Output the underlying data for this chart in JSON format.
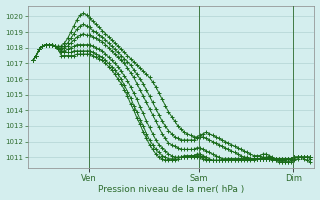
{
  "background_color": "#d4eeee",
  "grid_color": "#aacccc",
  "line_color": "#1a6b1a",
  "marker": "+",
  "xlabel_text": "Pression niveau de la mer( hPa )",
  "ylim": [
    1010.3,
    1020.7
  ],
  "xlim": [
    -5,
    268
  ],
  "yticks": [
    1011,
    1012,
    1013,
    1014,
    1015,
    1016,
    1017,
    1018,
    1019,
    1020
  ],
  "xtick_positions": [
    53,
    158,
    248
  ],
  "xtick_labels": [
    "Ven",
    "Sam",
    "Dim"
  ],
  "vlines": [
    53,
    158,
    248
  ],
  "lines": {
    "line1": {
      "x": [
        0,
        3,
        6,
        9,
        12,
        15,
        18,
        21,
        24,
        27,
        30,
        33,
        36,
        39,
        42,
        45,
        48,
        51,
        54,
        57,
        60,
        63,
        66,
        69,
        72,
        75,
        78,
        81,
        84,
        87,
        90,
        93,
        96,
        99,
        102,
        105,
        108,
        111,
        114,
        117,
        120,
        123,
        126,
        129,
        132,
        135,
        138,
        141,
        144,
        147,
        150,
        153,
        156,
        159,
        162,
        165,
        168,
        171,
        174,
        177,
        180,
        183,
        186,
        189,
        192,
        195,
        198,
        201,
        204,
        207,
        210,
        213,
        216,
        219,
        222,
        225,
        228,
        231,
        234,
        237,
        240,
        243,
        246,
        249,
        252,
        255,
        258,
        261,
        264
      ],
      "y": [
        1017.2,
        1017.5,
        1017.9,
        1018.1,
        1018.2,
        1018.2,
        1018.2,
        1018.1,
        1018.1,
        1018.1,
        1018.3,
        1018.6,
        1019.0,
        1019.4,
        1019.8,
        1020.1,
        1020.2,
        1020.1,
        1019.9,
        1019.7,
        1019.5,
        1019.3,
        1019.1,
        1018.9,
        1018.7,
        1018.5,
        1018.3,
        1018.1,
        1017.9,
        1017.7,
        1017.5,
        1017.3,
        1017.1,
        1016.9,
        1016.7,
        1016.5,
        1016.3,
        1016.1,
        1015.8,
        1015.5,
        1015.1,
        1014.7,
        1014.3,
        1013.9,
        1013.6,
        1013.3,
        1013.0,
        1012.8,
        1012.6,
        1012.5,
        1012.4,
        1012.3,
        1012.3,
        1012.4,
        1012.5,
        1012.6,
        1012.5,
        1012.4,
        1012.3,
        1012.2,
        1012.1,
        1012.0,
        1011.9,
        1011.8,
        1011.7,
        1011.6,
        1011.5,
        1011.4,
        1011.3,
        1011.2,
        1011.1,
        1011.1,
        1011.1,
        1011.2,
        1011.2,
        1011.1,
        1011.0,
        1010.9,
        1010.8,
        1010.7,
        1010.7,
        1010.7,
        1010.7,
        1010.8,
        1010.9,
        1011.0,
        1011.0,
        1011.0,
        1011.0
      ]
    },
    "line2": {
      "x": [
        0,
        3,
        6,
        9,
        12,
        15,
        18,
        21,
        24,
        27,
        30,
        33,
        36,
        39,
        42,
        45,
        48,
        51,
        54,
        57,
        60,
        63,
        66,
        69,
        72,
        75,
        78,
        81,
        84,
        87,
        90,
        93,
        96,
        99,
        102,
        105,
        108,
        111,
        114,
        117,
        120,
        123,
        126,
        129,
        132,
        135,
        138,
        141,
        144,
        147,
        150,
        153,
        156,
        159,
        162,
        165,
        168,
        171,
        174,
        177,
        180,
        183,
        186,
        189,
        192,
        195,
        198,
        201,
        204,
        207,
        210,
        213,
        216,
        219,
        222,
        225,
        228,
        231,
        234,
        237,
        240,
        243,
        246,
        249,
        252,
        255,
        258,
        261,
        264
      ],
      "y": [
        1017.2,
        1017.5,
        1017.9,
        1018.1,
        1018.2,
        1018.2,
        1018.2,
        1018.1,
        1018.0,
        1018.0,
        1018.1,
        1018.3,
        1018.6,
        1018.9,
        1019.2,
        1019.4,
        1019.5,
        1019.4,
        1019.3,
        1019.1,
        1019.0,
        1018.8,
        1018.7,
        1018.5,
        1018.3,
        1018.1,
        1017.9,
        1017.7,
        1017.5,
        1017.3,
        1017.1,
        1016.9,
        1016.6,
        1016.3,
        1016.0,
        1015.7,
        1015.3,
        1014.9,
        1014.5,
        1014.1,
        1013.7,
        1013.3,
        1013.0,
        1012.7,
        1012.5,
        1012.3,
        1012.2,
        1012.1,
        1012.1,
        1012.1,
        1012.1,
        1012.1,
        1012.2,
        1012.3,
        1012.3,
        1012.2,
        1012.1,
        1012.0,
        1011.9,
        1011.8,
        1011.7,
        1011.6,
        1011.5,
        1011.4,
        1011.3,
        1011.2,
        1011.1,
        1011.0,
        1011.0,
        1010.9,
        1010.9,
        1010.9,
        1010.9,
        1011.0,
        1011.0,
        1011.0,
        1010.9,
        1010.8,
        1010.7,
        1010.7,
        1010.7,
        1010.7,
        1010.8,
        1010.9,
        1011.0,
        1011.0,
        1010.9,
        1010.8,
        1010.7
      ]
    },
    "line3": {
      "x": [
        0,
        3,
        6,
        9,
        12,
        15,
        18,
        21,
        24,
        27,
        30,
        33,
        36,
        39,
        42,
        45,
        48,
        51,
        54,
        57,
        60,
        63,
        66,
        69,
        72,
        75,
        78,
        81,
        84,
        87,
        90,
        93,
        96,
        99,
        102,
        105,
        108,
        111,
        114,
        117,
        120,
        123,
        126,
        129,
        132,
        135,
        138,
        141,
        144,
        147,
        150,
        153,
        156,
        159,
        162,
        165,
        168,
        171,
        174,
        177,
        180,
        183,
        186,
        189,
        192,
        195,
        198,
        201,
        204,
        207,
        210,
        213,
        216,
        219,
        222,
        225,
        228,
        231,
        234,
        237,
        240,
        243,
        246,
        249,
        252,
        255,
        258,
        261,
        264
      ],
      "y": [
        1017.2,
        1017.5,
        1017.9,
        1018.1,
        1018.2,
        1018.2,
        1018.2,
        1018.1,
        1018.0,
        1017.9,
        1018.0,
        1018.1,
        1018.3,
        1018.5,
        1018.7,
        1018.8,
        1018.9,
        1018.8,
        1018.8,
        1018.7,
        1018.6,
        1018.5,
        1018.4,
        1018.2,
        1018.0,
        1017.8,
        1017.6,
        1017.4,
        1017.2,
        1017.0,
        1016.7,
        1016.4,
        1016.1,
        1015.7,
        1015.3,
        1014.9,
        1014.5,
        1014.1,
        1013.7,
        1013.3,
        1012.9,
        1012.5,
        1012.2,
        1011.9,
        1011.8,
        1011.7,
        1011.6,
        1011.5,
        1011.5,
        1011.5,
        1011.5,
        1011.5,
        1011.6,
        1011.6,
        1011.5,
        1011.4,
        1011.3,
        1011.2,
        1011.1,
        1011.0,
        1010.9,
        1010.9,
        1010.8,
        1010.8,
        1010.8,
        1010.8,
        1010.8,
        1010.8,
        1010.8,
        1010.8,
        1010.8,
        1010.9,
        1010.9,
        1010.9,
        1010.9,
        1010.9,
        1010.8,
        1010.8,
        1010.8,
        1010.8,
        1010.8,
        1010.9,
        1010.9,
        1011.0,
        1011.0,
        1011.0,
        1011.0,
        1011.0,
        1010.9
      ]
    },
    "line4": {
      "x": [
        0,
        3,
        6,
        9,
        12,
        15,
        18,
        21,
        24,
        27,
        30,
        33,
        36,
        39,
        42,
        45,
        48,
        51,
        54,
        57,
        60,
        63,
        66,
        69,
        72,
        75,
        78,
        81,
        84,
        87,
        90,
        93,
        96,
        99,
        102,
        105,
        108,
        111,
        114,
        117,
        120,
        123,
        126,
        129,
        132,
        135,
        138,
        141,
        144,
        147,
        150,
        153,
        156,
        159,
        162,
        165,
        168,
        171,
        174,
        177,
        180,
        183,
        186,
        189,
        192,
        195,
        198,
        201,
        204,
        207,
        210,
        213,
        216,
        219,
        222,
        225,
        228,
        231,
        234,
        237,
        240,
        243,
        246,
        249,
        252,
        255,
        258,
        261,
        264
      ],
      "y": [
        1017.2,
        1017.5,
        1017.9,
        1018.1,
        1018.2,
        1018.2,
        1018.2,
        1018.1,
        1018.0,
        1017.8,
        1017.8,
        1017.9,
        1018.0,
        1018.1,
        1018.2,
        1018.2,
        1018.2,
        1018.2,
        1018.2,
        1018.1,
        1018.0,
        1017.9,
        1017.8,
        1017.6,
        1017.4,
        1017.2,
        1017.0,
        1016.8,
        1016.5,
        1016.2,
        1015.9,
        1015.5,
        1015.1,
        1014.7,
        1014.2,
        1013.8,
        1013.3,
        1012.9,
        1012.5,
        1012.1,
        1011.8,
        1011.6,
        1011.4,
        1011.2,
        1011.1,
        1011.0,
        1011.0,
        1011.0,
        1011.0,
        1011.0,
        1011.1,
        1011.1,
        1011.2,
        1011.2,
        1011.1,
        1011.0,
        1010.9,
        1010.8,
        1010.8,
        1010.8,
        1010.8,
        1010.8,
        1010.8,
        1010.8,
        1010.8,
        1010.8,
        1010.9,
        1010.9,
        1010.9,
        1010.9,
        1010.9,
        1010.9,
        1010.9,
        1010.9,
        1010.9,
        1010.9,
        1010.9,
        1010.9,
        1010.9,
        1010.9,
        1010.9,
        1010.9,
        1010.9,
        1011.0,
        1011.0,
        1011.0,
        1011.0,
        1011.0,
        1011.0
      ]
    },
    "line5": {
      "x": [
        0,
        3,
        6,
        9,
        12,
        15,
        18,
        21,
        24,
        27,
        30,
        33,
        36,
        39,
        42,
        45,
        48,
        51,
        54,
        57,
        60,
        63,
        66,
        69,
        72,
        75,
        78,
        81,
        84,
        87,
        90,
        93,
        96,
        99,
        102,
        105,
        108,
        111,
        114,
        117,
        120,
        123,
        126,
        129,
        132,
        135,
        138,
        141,
        144,
        147,
        150,
        153,
        156,
        159,
        162,
        165,
        168,
        171,
        174,
        177,
        180,
        183,
        186,
        189,
        192,
        195,
        198,
        201,
        204,
        207,
        210,
        213,
        216,
        219,
        222,
        225,
        228,
        231,
        234,
        237,
        240,
        243,
        246,
        249,
        252,
        255,
        258,
        261,
        264
      ],
      "y": [
        1017.2,
        1017.5,
        1017.9,
        1018.1,
        1018.2,
        1018.2,
        1018.2,
        1018.1,
        1018.0,
        1017.7,
        1017.7,
        1017.7,
        1017.7,
        1017.8,
        1017.8,
        1017.8,
        1017.8,
        1017.8,
        1017.8,
        1017.7,
        1017.6,
        1017.5,
        1017.4,
        1017.2,
        1017.0,
        1016.8,
        1016.6,
        1016.3,
        1016.0,
        1015.6,
        1015.2,
        1014.8,
        1014.3,
        1013.9,
        1013.4,
        1013.0,
        1012.5,
        1012.1,
        1011.8,
        1011.5,
        1011.3,
        1011.1,
        1011.0,
        1010.9,
        1010.9,
        1010.9,
        1011.0,
        1011.0,
        1011.1,
        1011.1,
        1011.1,
        1011.1,
        1011.1,
        1011.1,
        1011.0,
        1010.9,
        1010.8,
        1010.8,
        1010.8,
        1010.8,
        1010.8,
        1010.8,
        1010.9,
        1010.9,
        1010.9,
        1010.9,
        1010.9,
        1010.9,
        1010.9,
        1010.9,
        1010.9,
        1010.9,
        1010.9,
        1010.9,
        1010.9,
        1010.9,
        1010.9,
        1010.9,
        1010.9,
        1010.9,
        1010.9,
        1010.9,
        1010.9,
        1011.0,
        1011.0,
        1011.0,
        1011.0,
        1011.0,
        1011.0
      ]
    },
    "line6": {
      "x": [
        0,
        3,
        6,
        9,
        12,
        15,
        18,
        21,
        24,
        27,
        30,
        33,
        36,
        39,
        42,
        45,
        48,
        51,
        54,
        57,
        60,
        63,
        66,
        69,
        72,
        75,
        78,
        81,
        84,
        87,
        90,
        93,
        96,
        99,
        102,
        105,
        108,
        111,
        114,
        117,
        120,
        123,
        126,
        129,
        132,
        135,
        138,
        141,
        144,
        147,
        150,
        153,
        156,
        159,
        162,
        165,
        168,
        171,
        174,
        177,
        180,
        183,
        186,
        189,
        192,
        195,
        198,
        201,
        204,
        207,
        210,
        213,
        216,
        219,
        222,
        225,
        228,
        231,
        234,
        237,
        240,
        243,
        246,
        249,
        252,
        255,
        258,
        261,
        264
      ],
      "y": [
        1017.2,
        1017.5,
        1017.9,
        1018.1,
        1018.2,
        1018.2,
        1018.2,
        1018.1,
        1017.9,
        1017.5,
        1017.5,
        1017.5,
        1017.5,
        1017.5,
        1017.6,
        1017.6,
        1017.6,
        1017.6,
        1017.6,
        1017.5,
        1017.4,
        1017.3,
        1017.2,
        1017.0,
        1016.8,
        1016.6,
        1016.3,
        1016.0,
        1015.7,
        1015.3,
        1014.9,
        1014.4,
        1014.0,
        1013.5,
        1013.1,
        1012.6,
        1012.2,
        1011.8,
        1011.5,
        1011.2,
        1011.0,
        1010.9,
        1010.8,
        1010.8,
        1010.8,
        1010.8,
        1010.9,
        1011.0,
        1011.0,
        1011.0,
        1011.0,
        1011.0,
        1011.0,
        1011.0,
        1010.9,
        1010.8,
        1010.8,
        1010.8,
        1010.8,
        1010.8,
        1010.8,
        1010.9,
        1010.9,
        1010.9,
        1010.9,
        1010.9,
        1010.9,
        1010.9,
        1010.9,
        1010.9,
        1010.9,
        1010.9,
        1010.9,
        1010.9,
        1010.9,
        1010.9,
        1010.9,
        1010.9,
        1010.9,
        1010.9,
        1010.9,
        1010.9,
        1010.9,
        1011.0,
        1011.0,
        1011.0,
        1011.0,
        1011.0,
        1011.0
      ]
    }
  }
}
